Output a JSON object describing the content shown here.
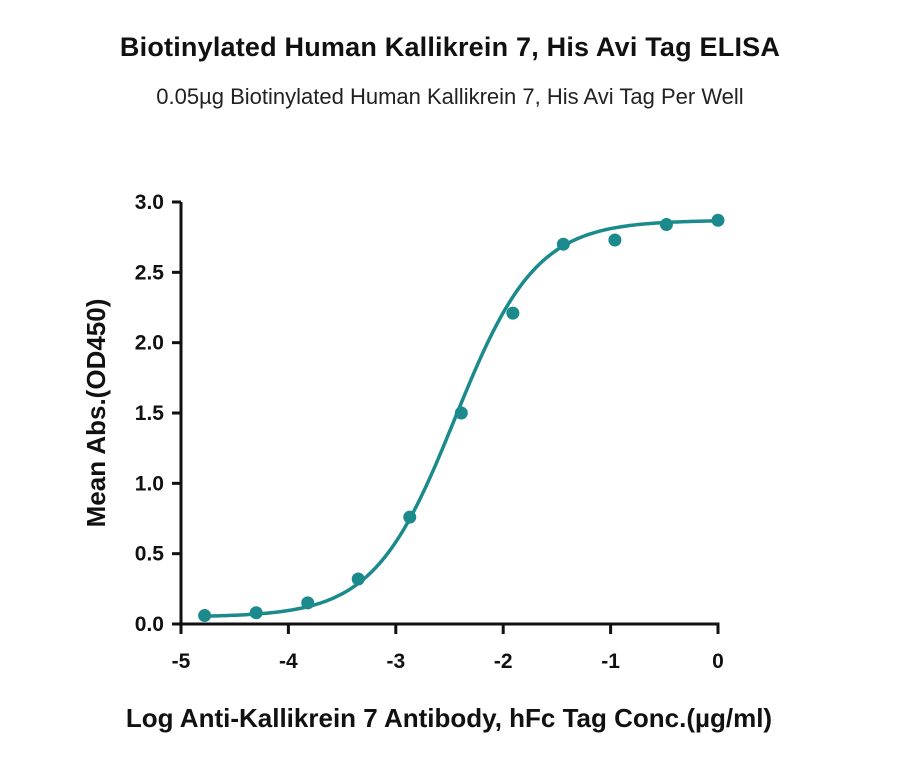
{
  "title": "Biotinylated Human Kallikrein 7, His Avi Tag ELISA",
  "subtitle": "0.05µg Biotinylated Human Kallikrein 7, His Avi Tag Per Well",
  "chart_data": {
    "type": "scatter",
    "title": "Biotinylated Human Kallikrein 7, His Avi Tag ELISA",
    "subtitle": "0.05µg Biotinylated Human Kallikrein 7, His Avi Tag Per Well",
    "xlabel": "Log Anti-Kallikrein 7 Antibody, hFc Tag Conc.(µg/ml)",
    "ylabel": "Mean Abs.(OD450)",
    "xlim": [
      -5,
      0
    ],
    "ylim": [
      0,
      3.0
    ],
    "xticks": [
      -5,
      -4,
      -3,
      -2,
      -1,
      0
    ],
    "xtick_labels": [
      "-5",
      "-4",
      "-3",
      "-2",
      "-1",
      "0"
    ],
    "yticks": [
      0,
      0.5,
      1.0,
      1.5,
      2.0,
      2.5,
      3.0
    ],
    "ytick_labels": [
      "0.0",
      "0.5",
      "1.0",
      "1.5",
      "2.0",
      "2.5",
      "3.0"
    ],
    "grid": false,
    "color": "#1a8a8c",
    "points": {
      "x": [
        -4.78,
        -4.3,
        -3.82,
        -3.35,
        -2.87,
        -2.39,
        -1.91,
        -1.44,
        -0.96,
        -0.48,
        0.0
      ],
      "y": [
        0.06,
        0.08,
        0.15,
        0.32,
        0.76,
        1.5,
        2.21,
        2.7,
        2.73,
        2.84,
        2.87
      ]
    },
    "fit_curve": {
      "model": "4PL",
      "bottom": 0.05,
      "top": 2.87,
      "log_ec50": -2.45,
      "hill_slope": 1.15
    }
  }
}
